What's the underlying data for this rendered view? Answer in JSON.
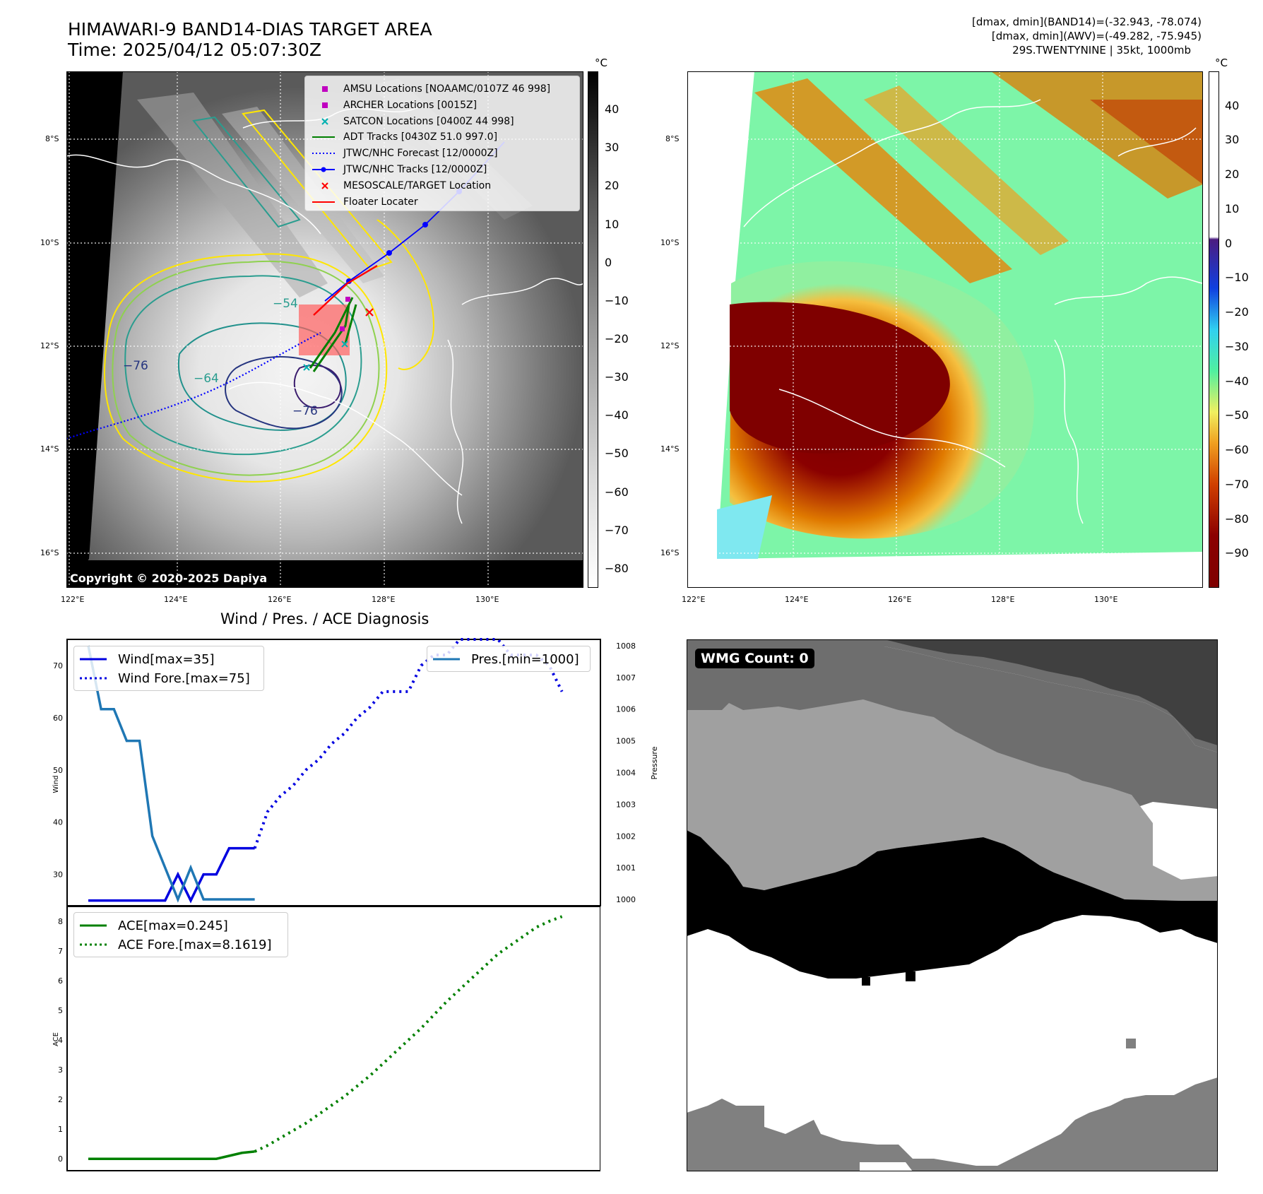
{
  "panel_ir": {
    "title_line1": "HIMAWARI-9 BAND14-DIAS TARGET AREA",
    "title_line2": "Time: 2025/04/12 05:07:30Z",
    "copyright": "Copyright © 2020-2025 Dapiya",
    "colorbar_unit": "°C",
    "legend": [
      {
        "label": "AMSU Locations [NOAAMC/0107Z 46 998]",
        "color": "#c000c0",
        "marker": "square"
      },
      {
        "label": "ARCHER Locations [0015Z]",
        "color": "#c000c0",
        "marker": "square"
      },
      {
        "label": "SATCON Locations [0400Z 44 998]",
        "color": "#00b0b0",
        "marker": "x"
      },
      {
        "label": "ADT Tracks [0430Z 51.0 997.0]",
        "color": "#008000",
        "marker": "line"
      },
      {
        "label": "JTWC/NHC Forecast [12/0000Z]",
        "color": "#0000ff",
        "marker": "dotted"
      },
      {
        "label": "JTWC/NHC Tracks [12/0000Z]",
        "color": "#0000ff",
        "marker": "dotline"
      },
      {
        "label": "MESOSCALE/TARGET Location",
        "color": "#ff0000",
        "marker": "x"
      },
      {
        "label": "Floater Locater",
        "color": "#ff0000",
        "marker": "line"
      }
    ],
    "contour_labels": [
      "−54",
      "−76",
      "−64",
      "−76"
    ]
  },
  "panel_awv": {
    "info_line1": "[dmax, dmin](BAND14)=(-32.943, -78.074)",
    "info_line2": "[dmax, dmin](AWV)=(-49.282, -75.945)",
    "info_line3": "29S.TWENTYNINE | 35kt, 1000mb",
    "colorbar_unit": "°C"
  },
  "panel_wind": {
    "title": "Wind / Pres. / ACE Diagnosis",
    "legend_wind": "Wind[max=35]",
    "legend_wind_fore": "Wind Fore.[max=75]",
    "legend_pres": "Pres.[min=1000]",
    "ylabel_left": "Wind",
    "ylabel_right": "Pressure"
  },
  "panel_ace": {
    "legend_ace": "ACE[max=0.245]",
    "legend_ace_fore": "ACE Fore.[max=8.1619]",
    "ylabel": "ACE"
  },
  "panel_wmg": {
    "label": "WMG Count: 0"
  },
  "colors": {
    "wind": "#0000e0",
    "pressure": "#1f77b4",
    "ace": "#008000"
  },
  "chart_data": [
    {
      "type": "heatmap",
      "title": "HIMAWARI-9 BAND14-DIAS TARGET AREA",
      "x_ticks": [
        "122°E",
        "124°E",
        "126°E",
        "128°E",
        "130°E"
      ],
      "y_ticks": [
        "8°S",
        "10°S",
        "12°S",
        "14°S",
        "16°S"
      ],
      "colorbar_ticks": [
        40,
        30,
        20,
        10,
        0,
        -10,
        -20,
        -30,
        -40,
        -50,
        -60,
        -70,
        -80
      ],
      "colorbar_range": [
        -85,
        50
      ]
    },
    {
      "type": "heatmap",
      "x_ticks": [
        "122°E",
        "124°E",
        "126°E",
        "128°E",
        "130°E"
      ],
      "y_ticks": [
        "8°S",
        "10°S",
        "12°S",
        "14°S",
        "16°S"
      ],
      "colorbar_ticks": [
        40,
        30,
        20,
        10,
        0,
        -10,
        -20,
        -30,
        -40,
        -50,
        -60,
        -70,
        -80,
        -90
      ],
      "colorbar_range": [
        -100,
        50
      ]
    },
    {
      "type": "line",
      "title": "Wind / Pres. / ACE Diagnosis",
      "x": [
        0,
        1,
        2,
        3,
        4,
        5,
        6,
        7,
        8,
        9,
        10,
        11,
        12,
        13,
        14,
        15,
        16,
        17,
        18,
        19,
        20,
        21,
        22,
        23,
        24,
        25,
        26,
        27,
        28,
        29,
        30,
        31,
        32,
        33,
        34,
        35,
        36,
        37
      ],
      "series": [
        {
          "name": "Wind[max=35]",
          "x": [
            0,
            1,
            2,
            3,
            4,
            5,
            6,
            7,
            8,
            9,
            10,
            11,
            12,
            13
          ],
          "values": [
            25,
            25,
            25,
            25,
            25,
            25,
            25,
            30,
            25,
            30,
            30,
            35,
            35,
            35
          ],
          "axis": "left",
          "style": "solid"
        },
        {
          "name": "Wind Fore.[max=75]",
          "x": [
            13,
            14,
            15,
            16,
            17,
            18,
            19,
            20,
            21,
            22,
            23,
            24,
            25,
            26,
            27,
            28,
            29,
            30,
            31,
            32,
            33,
            34,
            35,
            36,
            37
          ],
          "values": [
            35,
            42,
            45,
            47,
            50,
            52,
            55,
            57,
            60,
            62,
            65,
            65,
            65,
            70,
            72,
            72,
            75,
            75,
            75,
            75,
            72,
            72,
            72,
            70,
            65
          ],
          "axis": "left",
          "style": "dotted"
        },
        {
          "name": "Pres.[min=1000]",
          "x": [
            0,
            1,
            2,
            3,
            4,
            5,
            6,
            7,
            8,
            9,
            10,
            11,
            12,
            13
          ],
          "values": [
            1008,
            1006,
            1006,
            1005,
            1005,
            1002,
            1001,
            1000,
            1001,
            1000,
            1000,
            1000,
            1000,
            1000
          ],
          "axis": "right",
          "style": "solid"
        }
      ],
      "ylim_left": [
        24,
        75
      ],
      "yticks_left": [
        30,
        40,
        50,
        60,
        70
      ],
      "ylim_right": [
        999.8,
        1008.2
      ],
      "yticks_right": [
        1000,
        1001,
        1002,
        1003,
        1004,
        1005,
        1006,
        1007,
        1008
      ]
    },
    {
      "type": "line",
      "series": [
        {
          "name": "ACE[max=0.245]",
          "x": [
            0,
            1,
            2,
            3,
            4,
            5,
            6,
            7,
            8,
            9,
            10,
            11,
            12,
            13
          ],
          "values": [
            0,
            0,
            0,
            0,
            0,
            0,
            0,
            0,
            0,
            0,
            0,
            0.1,
            0.2,
            0.245
          ],
          "style": "solid"
        },
        {
          "name": "ACE Fore.[max=8.1619]",
          "x": [
            13,
            14,
            15,
            16,
            17,
            18,
            19,
            20,
            21,
            22,
            23,
            24,
            25,
            26,
            27,
            28,
            29,
            30,
            31,
            32,
            33,
            34,
            35,
            36,
            37
          ],
          "values": [
            0.245,
            0.45,
            0.7,
            0.95,
            1.2,
            1.5,
            1.8,
            2.1,
            2.45,
            2.8,
            3.2,
            3.6,
            4.0,
            4.4,
            4.85,
            5.3,
            5.7,
            6.1,
            6.5,
            6.9,
            7.2,
            7.5,
            7.8,
            8.0,
            8.1619
          ],
          "style": "dotted"
        }
      ],
      "ylim": [
        -0.4,
        8.5
      ],
      "yticks": [
        0,
        1,
        2,
        3,
        4,
        5,
        6,
        7,
        8
      ]
    }
  ]
}
